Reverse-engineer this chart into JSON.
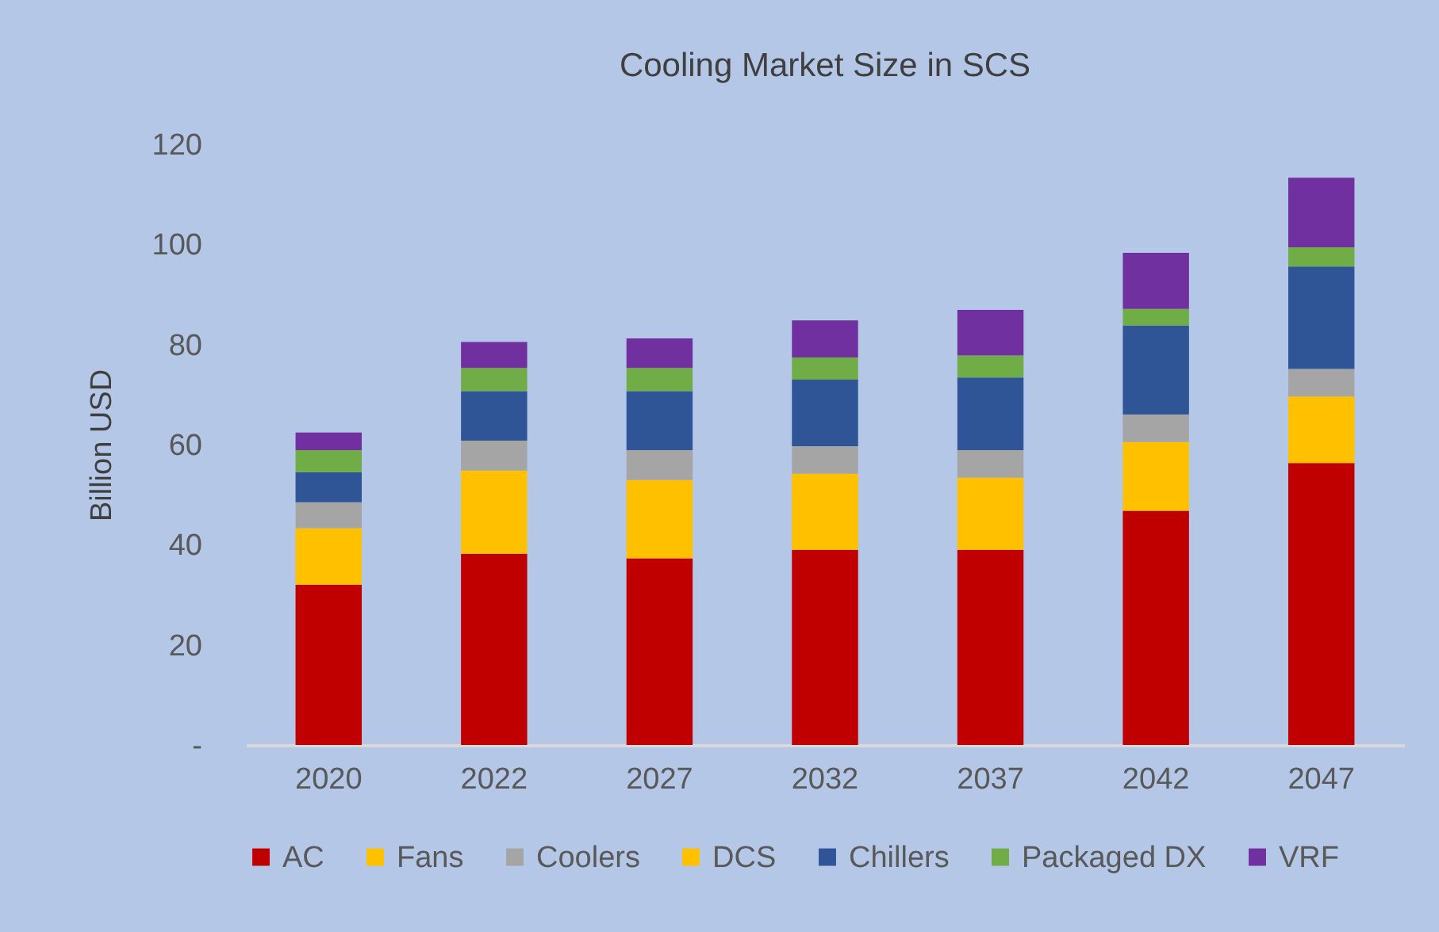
{
  "chart_data": {
    "type": "bar",
    "title": "Cooling Market Size in SCS",
    "ylabel": "Billion USD",
    "stacked": true,
    "legend": "bottom",
    "grid": false,
    "categories": [
      "2020",
      "2022",
      "2027",
      "2032",
      "2037",
      "2042",
      "2047"
    ],
    "ylim": [
      0,
      120
    ],
    "yticks": [
      {
        "value": 0,
        "label": "-"
      },
      20,
      40,
      60,
      80,
      100,
      120
    ],
    "series": [
      {
        "name": "AC",
        "color": "#c00000",
        "values": [
          32,
          38.2,
          37.3,
          39,
          39,
          46.8,
          56.3
        ]
      },
      {
        "name": "Fans",
        "color": "#ffc000",
        "values": [
          11.3,
          16.6,
          15.6,
          15.2,
          14.4,
          13.7,
          13.3
        ]
      },
      {
        "name": "Coolers",
        "color": "#a5a5a5",
        "values": [
          5.2,
          6,
          6,
          5.5,
          5.5,
          5.5,
          5.5
        ]
      },
      {
        "name": "DCS",
        "color": "#ffc000",
        "values": [
          0,
          0,
          0,
          0,
          0,
          0,
          0
        ]
      },
      {
        "name": "Chillers",
        "color": "#2f5597",
        "values": [
          6,
          9.9,
          11.8,
          13.3,
          14.5,
          17.8,
          20.5
        ]
      },
      {
        "name": "Packaged DX",
        "color": "#70ad47",
        "values": [
          4.4,
          4.6,
          4.6,
          4.4,
          4.4,
          3.3,
          3.8
        ]
      },
      {
        "name": "VRF",
        "color": "#7030a0",
        "values": [
          3.5,
          5.2,
          5.9,
          7.4,
          9.1,
          11.2,
          13.9
        ]
      }
    ]
  }
}
